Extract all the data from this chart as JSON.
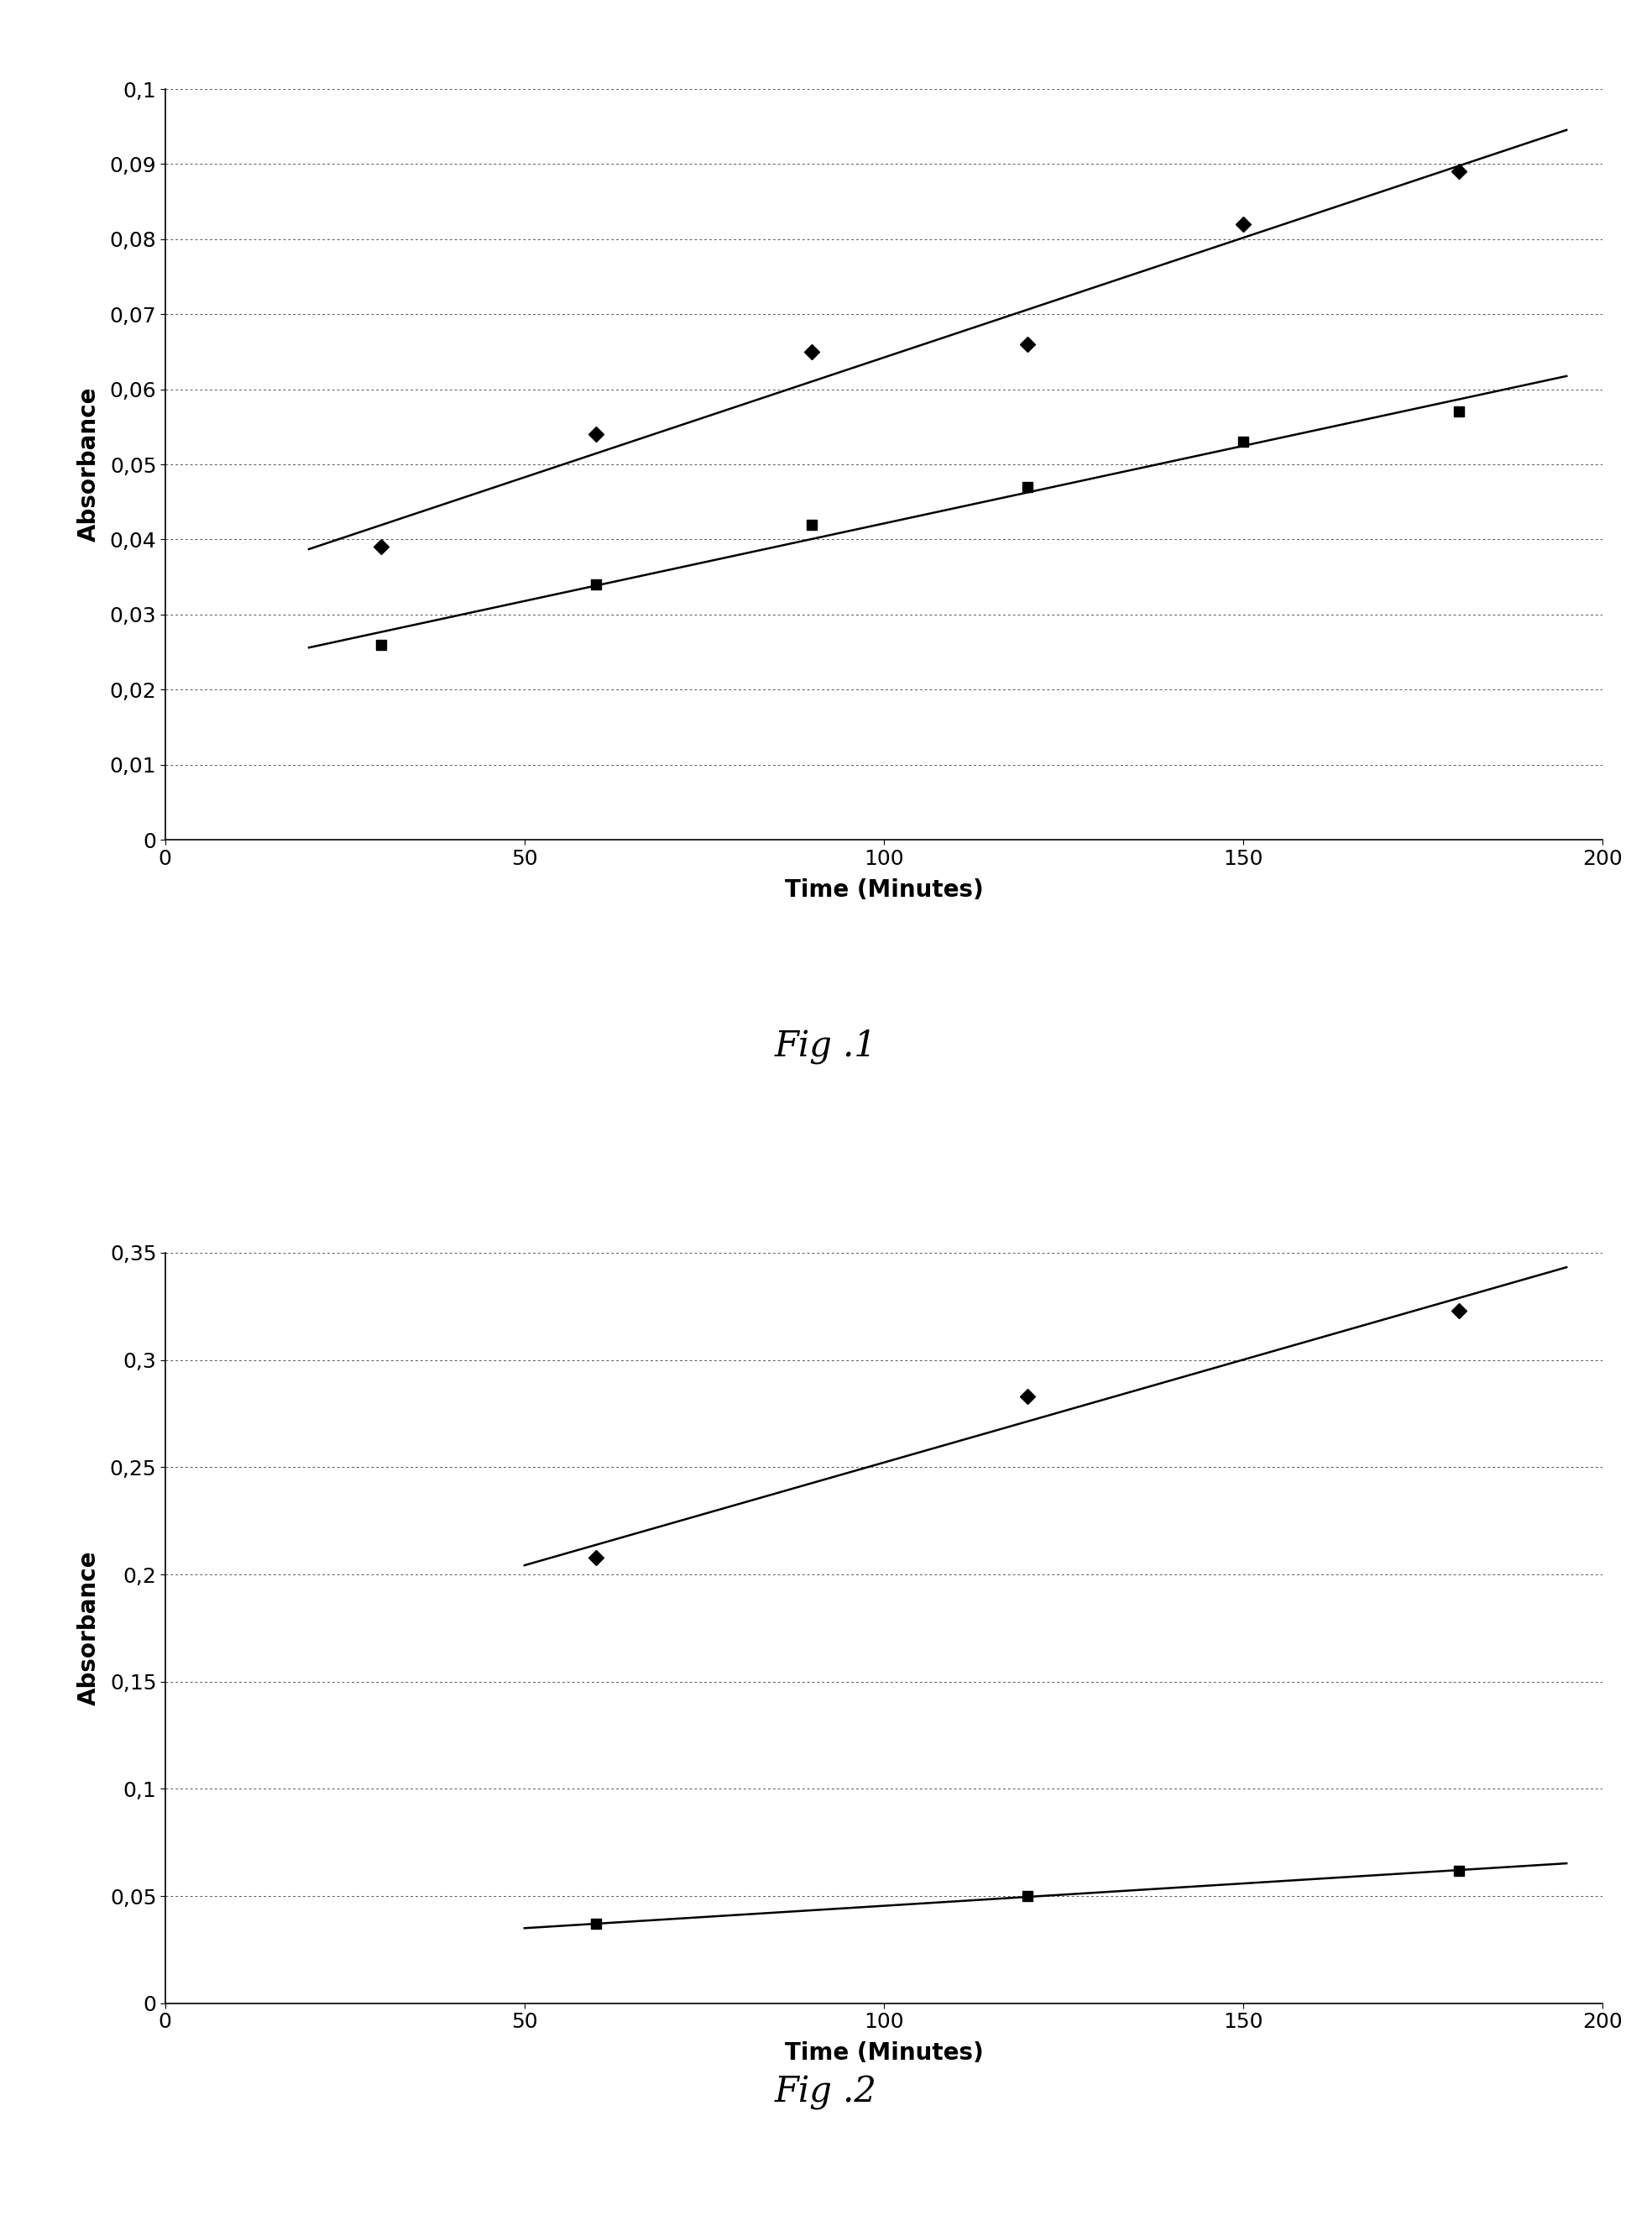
{
  "fig1": {
    "series1": {
      "x": [
        30,
        60,
        90,
        120,
        150,
        180
      ],
      "y": [
        0.039,
        0.054,
        0.065,
        0.066,
        0.082,
        0.089
      ],
      "marker": "D",
      "markersize": 9
    },
    "series2": {
      "x": [
        30,
        60,
        90,
        120,
        150,
        180
      ],
      "y": [
        0.026,
        0.034,
        0.042,
        0.047,
        0.053,
        0.057
      ],
      "marker": "s",
      "markersize": 9
    },
    "xlabel": "Time (Minutes)",
    "ylabel": "Absorbance",
    "xlim": [
      0,
      200
    ],
    "ylim": [
      0,
      0.1
    ],
    "yticks": [
      0,
      0.01,
      0.02,
      0.03,
      0.04,
      0.05,
      0.06,
      0.07,
      0.08,
      0.09,
      0.1
    ],
    "xticks": [
      0,
      50,
      100,
      150,
      200
    ],
    "title": "Fig .1"
  },
  "fig2": {
    "series1": {
      "x": [
        60,
        120,
        180
      ],
      "y": [
        0.208,
        0.283,
        0.323
      ],
      "marker": "D",
      "markersize": 9
    },
    "series2": {
      "x": [
        60,
        120,
        180
      ],
      "y": [
        0.037,
        0.05,
        0.062
      ],
      "marker": "s",
      "markersize": 9
    },
    "xlabel": "Time (Minutes)",
    "ylabel": "Absorbance",
    "xlim": [
      0,
      200
    ],
    "ylim": [
      0,
      0.35
    ],
    "yticks": [
      0,
      0.05,
      0.1,
      0.15,
      0.2,
      0.25,
      0.3,
      0.35
    ],
    "xticks": [
      0,
      50,
      100,
      150,
      200
    ],
    "title": "Fig .2"
  },
  "background_color": "#ffffff",
  "grid_color": "#555555",
  "grid_linewidth": 0.7
}
